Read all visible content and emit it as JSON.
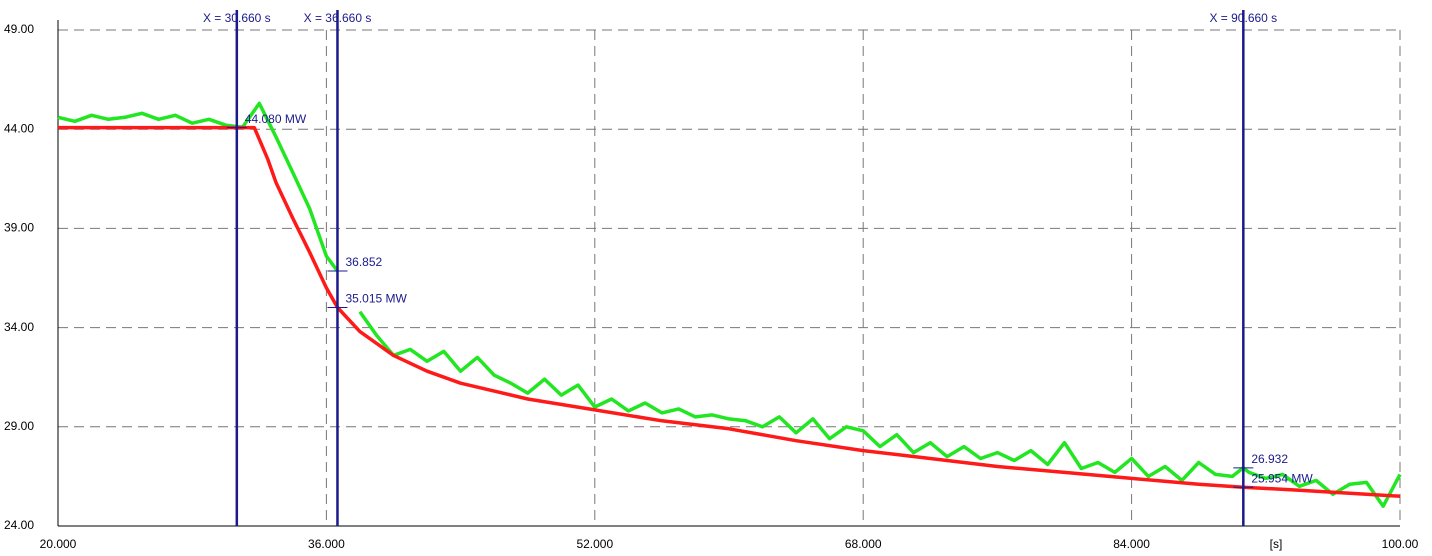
{
  "chart_data": {
    "type": "line",
    "x_label": "[s]",
    "xlim": [
      20,
      100
    ],
    "ylim": [
      24,
      49
    ],
    "xticks": [
      {
        "value": 20,
        "label": "20.000"
      },
      {
        "value": 36,
        "label": "36.000"
      },
      {
        "value": 52,
        "label": "52.000"
      },
      {
        "value": 68,
        "label": "68.000"
      },
      {
        "value": 84,
        "label": "84.000"
      },
      {
        "value": 100,
        "label": "100.00"
      }
    ],
    "yticks": [
      {
        "value": 24,
        "label": "24.00"
      },
      {
        "value": 29,
        "label": "29.00"
      },
      {
        "value": 34,
        "label": "34.00"
      },
      {
        "value": 39,
        "label": "39.00"
      },
      {
        "value": 44,
        "label": "44.00"
      },
      {
        "value": 49,
        "label": "49.00"
      }
    ],
    "grid": true,
    "series": [
      {
        "color": "#22e622",
        "x": [
          20,
          21,
          22,
          23,
          24,
          25,
          26,
          27,
          28,
          29,
          30,
          31,
          32,
          33,
          34,
          35,
          36,
          36.66,
          37,
          38,
          39,
          40,
          41,
          42,
          43,
          44,
          45,
          46,
          47,
          48,
          49,
          50,
          51,
          52,
          53,
          54,
          55,
          56,
          57,
          58,
          59,
          60,
          61,
          62,
          63,
          64,
          65,
          66,
          67,
          68,
          69,
          70,
          71,
          72,
          73,
          74,
          75,
          76,
          77,
          78,
          79,
          80,
          81,
          82,
          83,
          84,
          85,
          86,
          87,
          88,
          89,
          90,
          90.66,
          91,
          92,
          93,
          94,
          95,
          96,
          97,
          98,
          99,
          100
        ],
        "values": [
          44.6,
          44.4,
          44.7,
          44.5,
          44.6,
          44.8,
          44.5,
          44.7,
          44.3,
          44.5,
          44.2,
          44.1,
          45.3,
          43.6,
          41.8,
          40.0,
          37.6,
          36.852,
          null,
          34.8,
          33.6,
          32.6,
          32.9,
          32.3,
          32.8,
          31.8,
          32.5,
          31.6,
          31.2,
          30.7,
          31.4,
          30.6,
          31.1,
          30.0,
          30.4,
          29.8,
          30.2,
          29.7,
          29.9,
          29.5,
          29.6,
          29.4,
          29.3,
          29.0,
          29.5,
          28.7,
          29.4,
          28.4,
          29.0,
          28.8,
          28.0,
          28.6,
          27.7,
          28.2,
          27.5,
          28.0,
          27.4,
          27.7,
          27.3,
          27.8,
          27.1,
          28.2,
          26.9,
          27.2,
          26.7,
          27.4,
          26.5,
          27.0,
          26.3,
          27.2,
          26.6,
          26.5,
          26.932,
          26.7,
          26.4,
          26.6,
          26.0,
          26.3,
          25.6,
          26.1,
          26.2,
          25.0,
          26.6
        ]
      },
      {
        "color": "#ff1a1a",
        "x": [
          20,
          24,
          28,
          31.7,
          32.5,
          33,
          34,
          35,
          36,
          36.66,
          38,
          40,
          42,
          44,
          46,
          48,
          52,
          56,
          60,
          64,
          68,
          72,
          76,
          80,
          84,
          88,
          90.66,
          94,
          97,
          100
        ],
        "values": [
          44.08,
          44.08,
          44.08,
          44.08,
          42.5,
          41.3,
          39.5,
          37.8,
          36.0,
          35.015,
          33.8,
          32.6,
          31.8,
          31.2,
          30.8,
          30.4,
          29.85,
          29.3,
          28.9,
          28.3,
          27.8,
          27.4,
          27.0,
          26.7,
          26.4,
          26.1,
          25.954,
          25.8,
          25.65,
          25.5
        ]
      }
    ],
    "cursors": [
      {
        "value": 30.66,
        "label": "X = 30.660 s"
      },
      {
        "value": 36.66,
        "label": "X = 36.660 s"
      },
      {
        "value": 90.66,
        "label": "X = 90.660 s"
      }
    ],
    "annotations": [
      {
        "x": 30.66,
        "value": 44.08,
        "label": "44.080 MW"
      },
      {
        "x": 36.66,
        "value": 36.852,
        "label": "36.852"
      },
      {
        "x": 36.66,
        "value": 35.015,
        "label": "35.015 MW"
      },
      {
        "x": 90.66,
        "value": 26.932,
        "label": "26.932"
      },
      {
        "x": 90.66,
        "value": 25.954,
        "label": "25.954 MW"
      }
    ]
  }
}
